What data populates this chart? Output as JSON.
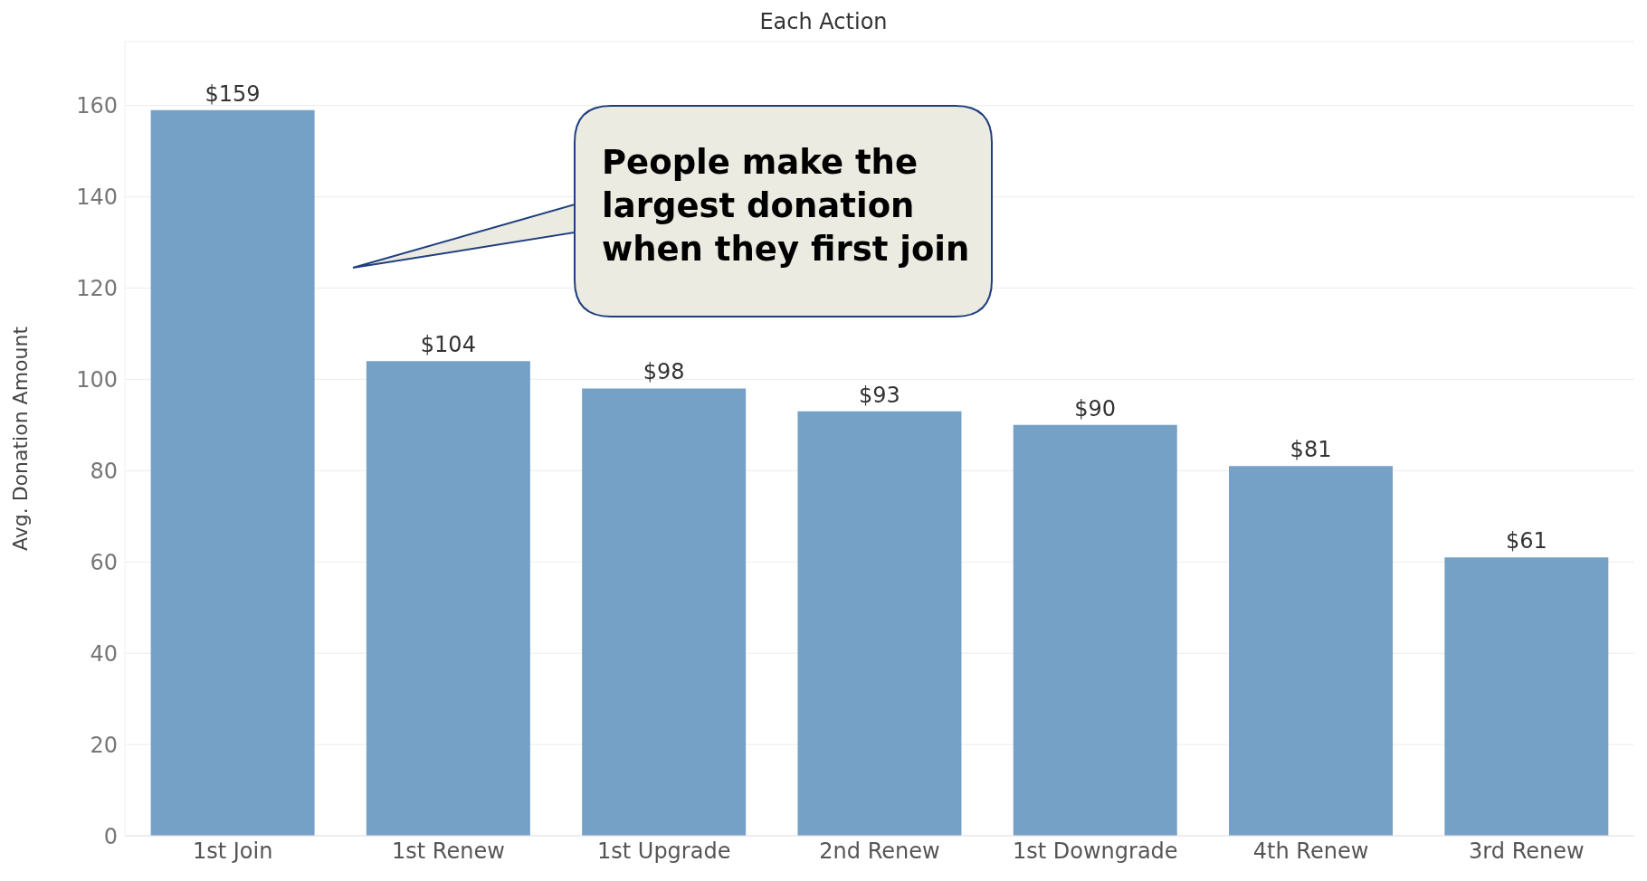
{
  "chart_data": {
    "type": "bar",
    "title": "Each Action",
    "ylabel": "Avg. Donation Amount",
    "categories": [
      "1st Join",
      "1st Renew",
      "1st Upgrade",
      "2nd Renew",
      "1st Downgrade",
      "4th Renew",
      "3rd Renew"
    ],
    "values": [
      159,
      104,
      98,
      93,
      90,
      81,
      61
    ],
    "value_labels": [
      "$159",
      "$104",
      "$98",
      "$93",
      "$90",
      "$81",
      "$61"
    ],
    "color": "#76a1c6",
    "ylim": [
      0,
      174
    ],
    "yticks": [
      0,
      20,
      40,
      60,
      80,
      100,
      120,
      140,
      160
    ],
    "grid": "y",
    "annotations": [
      "People make the largest donation when they first join"
    ]
  }
}
